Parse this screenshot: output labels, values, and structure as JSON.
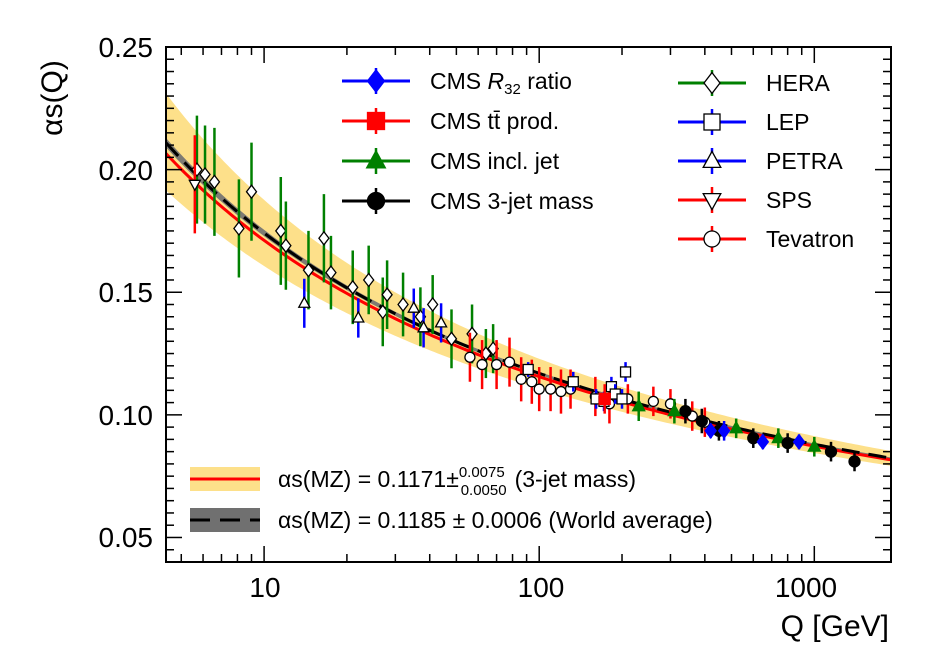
{
  "chart_data": {
    "type": "scatter",
    "title": "",
    "xlabel": "Q [GeV]",
    "ylabel": "αs(Q)",
    "xscale": "log",
    "xlim": [
      4.4,
      1900
    ],
    "ylim": [
      0.04,
      0.25
    ],
    "x_ticks": [
      "10",
      "100",
      "1000"
    ],
    "y_ticks": [
      "0.05",
      "0.10",
      "0.15",
      "0.20",
      "0.25"
    ],
    "grid": false,
    "legend_position": "top",
    "colors": {
      "blue": "#0000ff",
      "red": "#ff0000",
      "green": "#008000",
      "black": "#000000",
      "band_yellow": "#fde08a",
      "band_grey": "#707070"
    },
    "series": [
      {
        "name": "CMS R32 ratio",
        "marker": "diamond",
        "filled": true,
        "color": "#0000ff",
        "points": [
          [
            420,
            0.0935,
            0.003
          ],
          [
            470,
            0.0935,
            0.004
          ],
          [
            650,
            0.089,
            0.003
          ],
          [
            880,
            0.089,
            0.003
          ]
        ]
      },
      {
        "name": "CMS tt̄ prod.",
        "marker": "square",
        "filled": true,
        "color": "#ff0000",
        "points": [
          [
            173,
            0.1065,
            0.006
          ]
        ]
      },
      {
        "name": "CMS incl. jet",
        "marker": "triangle-up",
        "filled": true,
        "color": "#008000",
        "points": [
          [
            230,
            0.1035,
            0.006
          ],
          [
            310,
            0.1015,
            0.005
          ],
          [
            520,
            0.0945,
            0.004
          ],
          [
            740,
            0.0905,
            0.004
          ],
          [
            1000,
            0.087,
            0.004
          ]
        ]
      },
      {
        "name": "CMS 3-jet mass",
        "marker": "circle",
        "filled": true,
        "color": "#000000",
        "points": [
          [
            340,
            0.1015,
            0.005
          ],
          [
            390,
            0.0975,
            0.005
          ],
          [
            450,
            0.0935,
            0.004
          ],
          [
            600,
            0.0905,
            0.004
          ],
          [
            800,
            0.0885,
            0.004
          ],
          [
            1150,
            0.085,
            0.004
          ],
          [
            1400,
            0.081,
            0.004
          ]
        ]
      },
      {
        "name": "HERA",
        "marker": "diamond",
        "filled": false,
        "color": "#008000",
        "points": [
          [
            5.7,
            0.2,
            0.022
          ],
          [
            6.1,
            0.198,
            0.02
          ],
          [
            6.6,
            0.195,
            0.022
          ],
          [
            8.1,
            0.176,
            0.02
          ],
          [
            9,
            0.191,
            0.02
          ],
          [
            11.5,
            0.175,
            0.022
          ],
          [
            12,
            0.169,
            0.018
          ],
          [
            14.5,
            0.159,
            0.016
          ],
          [
            16.5,
            0.172,
            0.018
          ],
          [
            17.5,
            0.158,
            0.015
          ],
          [
            21,
            0.152,
            0.015
          ],
          [
            24,
            0.155,
            0.014
          ],
          [
            27,
            0.142,
            0.014
          ],
          [
            28,
            0.149,
            0.014
          ],
          [
            32,
            0.145,
            0.013
          ],
          [
            37,
            0.14,
            0.012
          ],
          [
            41,
            0.145,
            0.012
          ],
          [
            48,
            0.131,
            0.012
          ],
          [
            57,
            0.133,
            0.012
          ],
          [
            64,
            0.125,
            0.01
          ],
          [
            68,
            0.127,
            0.01
          ]
        ]
      },
      {
        "name": "LEP",
        "marker": "square",
        "filled": false,
        "color": "#0000ff",
        "points": [
          [
            91.2,
            0.1185,
            0.003
          ],
          [
            133,
            0.1135,
            0.004
          ],
          [
            161,
            0.1065,
            0.004
          ],
          [
            172,
            0.1055,
            0.004
          ],
          [
            183,
            0.1115,
            0.004
          ],
          [
            189,
            0.1085,
            0.004
          ],
          [
            200,
            0.1065,
            0.004
          ],
          [
            206,
            0.1175,
            0.004
          ]
        ]
      },
      {
        "name": "PETRA",
        "marker": "triangle-up",
        "filled": false,
        "color": "#0000ff",
        "points": [
          [
            14,
            0.1455,
            0.01
          ],
          [
            22,
            0.1395,
            0.008
          ],
          [
            35,
            0.1435,
            0.008
          ],
          [
            44,
            0.1375,
            0.008
          ],
          [
            38,
            0.1355,
            0.008
          ]
        ]
      },
      {
        "name": "SPS",
        "marker": "triangle-down",
        "filled": false,
        "color": "#ff0000",
        "points": [
          [
            5.6,
            0.194,
            0.02
          ]
        ]
      },
      {
        "name": "Tevatron",
        "marker": "circle",
        "filled": false,
        "color": "#ff0000",
        "points": [
          [
            56,
            0.1235,
            0.01
          ],
          [
            62,
            0.1205,
            0.01
          ],
          [
            70,
            0.1205,
            0.01
          ],
          [
            78,
            0.1215,
            0.01
          ],
          [
            86,
            0.1145,
            0.009
          ],
          [
            94,
            0.1135,
            0.009
          ],
          [
            100,
            0.1105,
            0.009
          ],
          [
            110,
            0.1105,
            0.009
          ],
          [
            120,
            0.1095,
            0.009
          ],
          [
            130,
            0.1105,
            0.008
          ],
          [
            160,
            0.1075,
            0.008
          ],
          [
            180,
            0.1045,
            0.008
          ],
          [
            210,
            0.1065,
            0.006
          ],
          [
            260,
            0.1055,
            0.006
          ],
          [
            300,
            0.1045,
            0.006
          ],
          [
            360,
            0.0995,
            0.006
          ],
          [
            400,
            0.097,
            0.006
          ]
        ]
      }
    ],
    "bands": [
      {
        "name": "3-jet mass",
        "label_prefix": "αs(MZ) = 0.1171",
        "pm": "±",
        "sup": "0.0075",
        "sub": "0.0050",
        "suffix": "(3-jet mass)",
        "alphas_mz": 0.1171,
        "err_up": 0.0075,
        "err_down": 0.005,
        "line_color": "#ff0000",
        "band_color": "#fde08a"
      },
      {
        "name": "World average",
        "label": "αs(MZ) = 0.1185 ± 0.0006 (World average)",
        "alphas_mz": 0.1185,
        "err": 0.0006,
        "line_color": "#000000",
        "band_color": "#707070"
      }
    ],
    "legend_markers": [
      "CMS R32 ratio",
      "CMS tt̄ prod.",
      "CMS incl. jet",
      "CMS 3-jet mass",
      "HERA",
      "LEP",
      "PETRA",
      "SPS",
      "Tevatron"
    ]
  }
}
